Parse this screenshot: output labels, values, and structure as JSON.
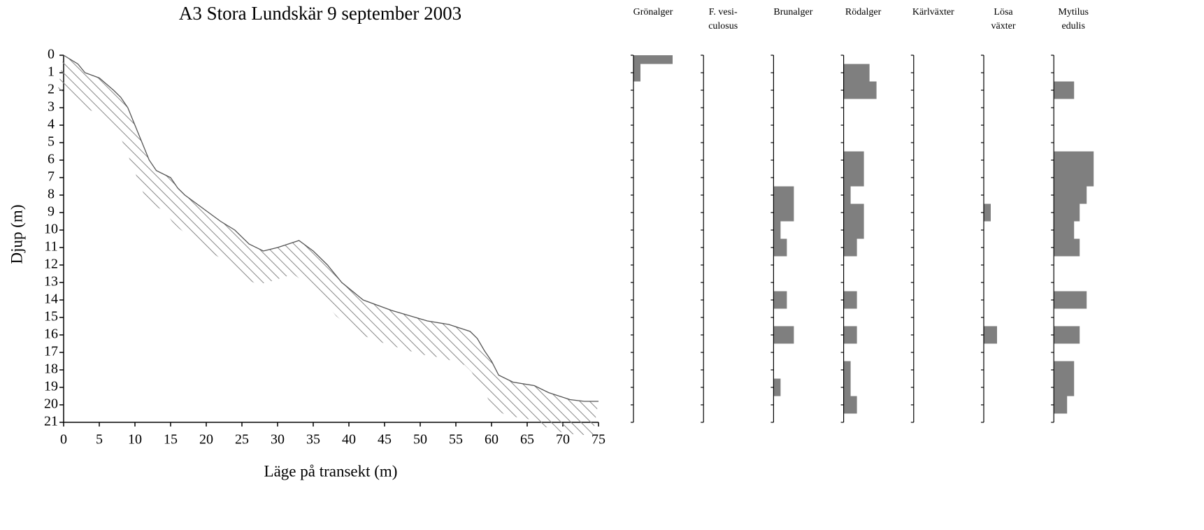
{
  "chart_data": [
    {
      "type": "line",
      "title": "A3 Stora Lundskär 9 september 2003",
      "x_label": "Läge på transekt (m)",
      "y_label": "Djup (m)",
      "color": "#555555",
      "x": [
        0,
        2,
        3,
        5,
        7,
        8,
        9,
        10,
        11,
        12,
        13,
        15,
        16,
        17,
        20,
        22,
        24,
        26,
        28,
        30,
        33,
        35,
        37,
        39,
        42,
        46,
        51,
        54,
        57,
        58,
        59,
        60,
        61,
        63,
        66,
        68,
        71,
        73,
        75
      ],
      "values": [
        0.0,
        0.5,
        1.0,
        1.3,
        2.0,
        2.4,
        3.0,
        4.0,
        5.0,
        6.0,
        6.6,
        7.0,
        7.6,
        8.0,
        8.9,
        9.5,
        10.0,
        10.8,
        11.2,
        11.0,
        10.6,
        11.2,
        12.0,
        13.0,
        14.0,
        14.6,
        15.2,
        15.4,
        15.8,
        16.2,
        16.9,
        17.5,
        18.3,
        18.7,
        18.9,
        19.3,
        19.7,
        19.8,
        19.8
      ],
      "xlim": [
        0,
        75
      ],
      "xticks": [
        0,
        5,
        10,
        15,
        20,
        25,
        30,
        35,
        40,
        45,
        50,
        55,
        60,
        65,
        70,
        75
      ],
      "ylim": [
        0,
        21
      ],
      "yticks": [
        0,
        1,
        2,
        3,
        4,
        5,
        6,
        7,
        8,
        9,
        10,
        11,
        12,
        13,
        14,
        15,
        16,
        17,
        18,
        19,
        20,
        21
      ],
      "y_inverted": true
    },
    {
      "type": "bar",
      "orientation": "horizontal",
      "y": [
        0,
        1,
        2,
        3,
        4,
        5,
        6,
        7,
        8,
        9,
        10,
        11,
        12,
        13,
        14,
        15,
        16,
        17,
        18,
        19,
        20
      ],
      "ylim": [
        0,
        21
      ],
      "yticks": [
        0,
        1,
        2,
        3,
        4,
        5,
        6,
        7,
        8,
        9,
        10,
        11,
        12,
        13,
        14,
        15,
        16,
        17,
        18,
        19,
        20,
        21
      ],
      "y_inverted": true,
      "xlim": [
        0,
        100
      ],
      "series": [
        {
          "name": "Grönalger",
          "color": "#7f7f7f",
          "values": [
            56,
            10,
            0,
            0,
            0,
            0,
            0,
            0,
            0,
            0,
            0,
            0,
            0,
            0,
            0,
            0,
            0,
            0,
            0,
            0,
            0
          ]
        },
        {
          "name": "F. vesi-\nculosus",
          "color": "#7f7f7f",
          "values": [
            0,
            0,
            0,
            0,
            0,
            0,
            0,
            0,
            0,
            0,
            0,
            0,
            0,
            0,
            0,
            0,
            0,
            0,
            0,
            0,
            0
          ]
        },
        {
          "name": "Brunalger",
          "color": "#7f7f7f",
          "values": [
            0,
            0,
            0,
            0,
            0,
            0,
            0,
            0,
            29,
            29,
            10,
            19,
            0,
            0,
            19,
            0,
            29,
            0,
            0,
            10,
            0
          ]
        },
        {
          "name": "Rödalger",
          "color": "#7f7f7f",
          "values": [
            0,
            37,
            47,
            0,
            0,
            0,
            29,
            29,
            10,
            29,
            29,
            19,
            0,
            0,
            19,
            0,
            19,
            0,
            10,
            10,
            19
          ]
        },
        {
          "name": "Kärlväxter",
          "color": "#7f7f7f",
          "values": [
            0,
            0,
            0,
            0,
            0,
            0,
            0,
            0,
            0,
            0,
            0,
            0,
            0,
            0,
            0,
            0,
            0,
            0,
            0,
            0,
            0
          ]
        },
        {
          "name": "Lösa\nväxter",
          "color": "#7f7f7f",
          "values": [
            0,
            0,
            0,
            0,
            0,
            0,
            0,
            0,
            0,
            10,
            0,
            0,
            0,
            0,
            0,
            0,
            19,
            0,
            0,
            0,
            0
          ]
        },
        {
          "name": "Mytilus\nedulis",
          "color": "#7f7f7f",
          "values": [
            0,
            0,
            29,
            0,
            0,
            0,
            57,
            57,
            47,
            37,
            29,
            37,
            0,
            0,
            47,
            0,
            37,
            0,
            29,
            29,
            19
          ]
        }
      ]
    }
  ]
}
